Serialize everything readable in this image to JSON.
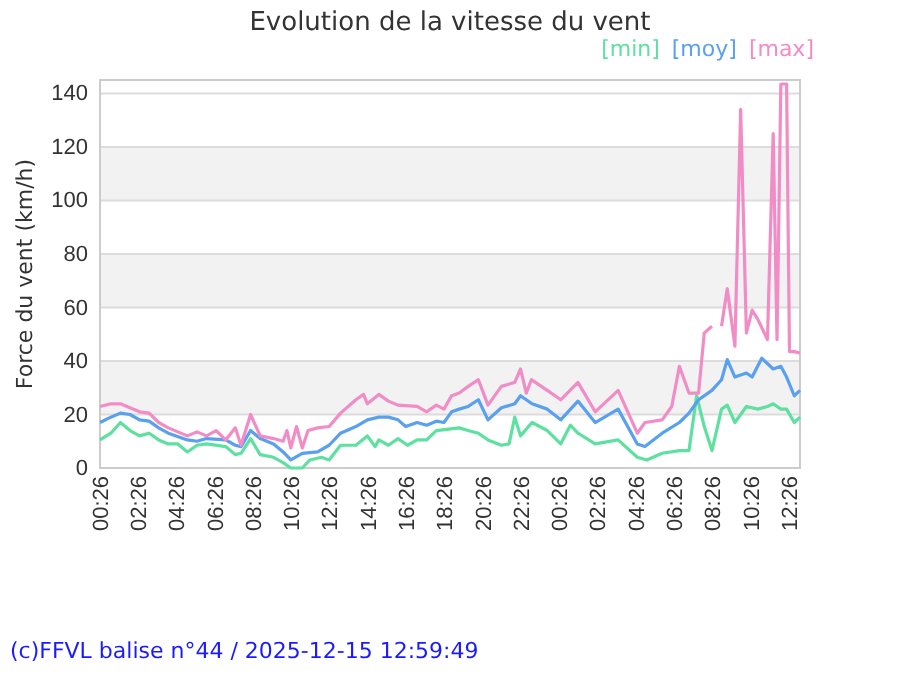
{
  "chart_data": {
    "type": "line",
    "title": "Evolution de la vitesse du vent",
    "ylabel": "Force du vent (km/h)",
    "annotations": [
      "(c)FFVL balise n°44 / 2025-12-15 12:59:49"
    ],
    "xlim": [
      "2025-12-14T00:26",
      "2025-12-15T13:00"
    ],
    "ylim": [
      0,
      145
    ],
    "xticks": [
      {
        "value": "2025-12-14T00:26",
        "label": "00:26"
      },
      {
        "value": "2025-12-14T02:26",
        "label": "02:26"
      },
      {
        "value": "2025-12-14T04:26",
        "label": "04:26"
      },
      {
        "value": "2025-12-14T06:26",
        "label": "06:26"
      },
      {
        "value": "2025-12-14T08:26",
        "label": "08:26"
      },
      {
        "value": "2025-12-14T10:26",
        "label": "10:26"
      },
      {
        "value": "2025-12-14T12:26",
        "label": "12:26"
      },
      {
        "value": "2025-12-14T14:26",
        "label": "14:26"
      },
      {
        "value": "2025-12-14T16:26",
        "label": "16:26"
      },
      {
        "value": "2025-12-14T18:26",
        "label": "18:26"
      },
      {
        "value": "2025-12-14T20:26",
        "label": "20:26"
      },
      {
        "value": "2025-12-14T22:26",
        "label": "22:26"
      },
      {
        "value": "2025-12-15T00:26",
        "label": "00:26"
      },
      {
        "value": "2025-12-15T02:26",
        "label": "02:26"
      },
      {
        "value": "2025-12-15T04:26",
        "label": "04:26"
      },
      {
        "value": "2025-12-15T06:26",
        "label": "06:26"
      },
      {
        "value": "2025-12-15T08:26",
        "label": "08:26"
      },
      {
        "value": "2025-12-15T10:26",
        "label": "10:26"
      },
      {
        "value": "2025-12-15T12:26",
        "label": "12:26"
      }
    ],
    "yticks": [
      0,
      20,
      40,
      60,
      80,
      100,
      120,
      140
    ],
    "grid": "y",
    "legend": "top right",
    "bands": [
      {
        "axis": "y",
        "from": 20,
        "to": 40,
        "color": "#f2f2f2"
      },
      {
        "axis": "y",
        "from": 60,
        "to": 80,
        "color": "#f2f2f2"
      },
      {
        "axis": "y",
        "from": 100,
        "to": 120,
        "color": "#f2f2f2"
      }
    ],
    "series": [
      {
        "name": "[min]",
        "color": "#5ee0a0",
        "x": [
          "2025-12-14T00:26",
          "2025-12-14T01:00",
          "2025-12-14T01:30",
          "2025-12-14T02:00",
          "2025-12-14T02:30",
          "2025-12-14T03:00",
          "2025-12-14T03:30",
          "2025-12-14T04:00",
          "2025-12-14T04:30",
          "2025-12-14T05:00",
          "2025-12-14T05:30",
          "2025-12-14T06:00",
          "2025-12-14T07:00",
          "2025-12-14T07:30",
          "2025-12-14T07:48",
          "2025-12-14T08:18",
          "2025-12-14T08:48",
          "2025-12-14T09:30",
          "2025-12-14T10:00",
          "2025-12-14T10:24",
          "2025-12-14T11:00",
          "2025-12-14T11:24",
          "2025-12-14T12:00",
          "2025-12-14T12:24",
          "2025-12-14T13:00",
          "2025-12-14T13:48",
          "2025-12-14T14:24",
          "2025-12-14T14:48",
          "2025-12-14T15:00",
          "2025-12-14T15:30",
          "2025-12-14T16:00",
          "2025-12-14T16:30",
          "2025-12-14T17:00",
          "2025-12-14T17:30",
          "2025-12-14T18:00",
          "2025-12-14T19:12",
          "2025-12-14T19:40",
          "2025-12-14T20:12",
          "2025-12-14T20:42",
          "2025-12-14T21:24",
          "2025-12-14T21:48",
          "2025-12-14T22:06",
          "2025-12-14T22:24",
          "2025-12-14T23:00",
          "2025-12-14T23:48",
          "2025-12-15T00:30",
          "2025-12-15T01:00",
          "2025-12-15T01:24",
          "2025-12-15T02:18",
          "2025-12-15T03:30",
          "2025-12-15T04:30",
          "2025-12-15T05:00",
          "2025-12-15T05:48",
          "2025-12-15T06:42",
          "2025-12-15T07:12",
          "2025-12-15T07:36",
          "2025-12-15T08:00",
          "2025-12-15T08:24",
          "2025-12-15T08:54",
          "2025-12-15T09:12",
          "2025-12-15T09:36",
          "2025-12-15T10:12",
          "2025-12-15T10:48",
          "2025-12-15T11:18",
          "2025-12-15T11:36",
          "2025-12-15T12:00",
          "2025-12-15T12:18",
          "2025-12-15T12:42",
          "2025-12-15T13:00"
        ],
        "values": [
          10.5,
          13,
          17,
          14,
          12,
          13,
          10.5,
          9,
          9,
          6,
          8.5,
          9,
          8,
          5,
          5.5,
          11,
          5,
          4,
          2,
          0,
          0,
          3,
          4,
          3,
          8.5,
          8.5,
          12,
          8,
          10.5,
          8.5,
          11,
          8.5,
          10.5,
          10.5,
          14,
          15,
          14,
          13,
          10.5,
          8.5,
          9,
          19,
          12,
          17,
          14,
          9,
          16,
          13,
          9,
          10.5,
          4,
          3,
          5.5,
          6.5,
          6.5,
          27,
          15.5,
          6.5,
          22,
          23.5,
          17,
          23,
          22,
          23,
          24,
          22,
          22,
          17,
          19
        ]
      },
      {
        "name": "[moy]",
        "color": "#5aa0f0",
        "x": [
          "2025-12-14T00:26",
          "2025-12-14T01:00",
          "2025-12-14T01:30",
          "2025-12-14T02:00",
          "2025-12-14T02:30",
          "2025-12-14T03:00",
          "2025-12-14T03:30",
          "2025-12-14T04:00",
          "2025-12-14T05:00",
          "2025-12-14T05:30",
          "2025-12-14T06:00",
          "2025-12-14T07:00",
          "2025-12-14T07:30",
          "2025-12-14T07:48",
          "2025-12-14T08:18",
          "2025-12-14T08:48",
          "2025-12-14T09:30",
          "2025-12-14T10:00",
          "2025-12-14T10:24",
          "2025-12-14T11:00",
          "2025-12-14T11:48",
          "2025-12-14T12:24",
          "2025-12-14T13:00",
          "2025-12-14T13:48",
          "2025-12-14T14:24",
          "2025-12-14T15:00",
          "2025-12-14T15:30",
          "2025-12-14T16:00",
          "2025-12-14T16:24",
          "2025-12-14T17:00",
          "2025-12-14T17:30",
          "2025-12-14T18:00",
          "2025-12-14T18:24",
          "2025-12-14T18:48",
          "2025-12-14T19:12",
          "2025-12-14T19:40",
          "2025-12-14T20:12",
          "2025-12-14T20:42",
          "2025-12-14T21:24",
          "2025-12-14T22:06",
          "2025-12-14T22:24",
          "2025-12-14T23:00",
          "2025-12-14T23:48",
          "2025-12-15T00:30",
          "2025-12-15T01:24",
          "2025-12-15T02:18",
          "2025-12-15T03:30",
          "2025-12-15T04:30",
          "2025-12-15T04:54",
          "2025-12-15T05:48",
          "2025-12-15T06:42",
          "2025-12-15T07:12",
          "2025-12-15T07:42",
          "2025-12-15T08:24",
          "2025-12-15T08:54",
          "2025-12-15T09:12",
          "2025-12-15T09:36",
          "2025-12-15T10:12",
          "2025-12-15T10:30",
          "2025-12-15T11:00",
          "2025-12-15T11:36",
          "2025-12-15T12:00",
          "2025-12-15T12:18",
          "2025-12-15T12:42",
          "2025-12-15T13:00"
        ],
        "values": [
          17,
          19,
          20.5,
          20,
          18,
          17.5,
          15,
          13,
          10.5,
          10,
          11,
          10.5,
          8.5,
          8,
          14,
          11,
          9,
          6,
          3,
          5.5,
          6,
          8.5,
          13,
          15.5,
          18,
          19,
          19,
          18,
          15.5,
          17,
          16,
          17.5,
          17,
          21,
          22,
          23,
          25.5,
          18,
          22.5,
          24,
          27,
          24,
          22,
          18,
          25,
          17,
          22,
          9,
          8,
          13,
          17,
          20.5,
          25.5,
          29,
          33,
          40.5,
          34,
          35.5,
          34,
          41,
          37,
          38,
          34,
          27,
          29
        ]
      },
      {
        "name": "[max]",
        "color": "#f28cc6",
        "x": [
          "2025-12-14T00:26",
          "2025-12-14T01:00",
          "2025-12-14T01:30",
          "2025-12-14T02:00",
          "2025-12-14T02:30",
          "2025-12-14T03:00",
          "2025-12-14T03:30",
          "2025-12-14T04:00",
          "2025-12-14T05:00",
          "2025-12-14T05:30",
          "2025-12-14T06:00",
          "2025-12-14T06:30",
          "2025-12-14T07:00",
          "2025-12-14T07:30",
          "2025-12-14T07:48",
          "2025-12-14T08:18",
          "2025-12-14T08:48",
          "2025-12-14T09:30",
          "2025-12-14T10:00",
          "2025-12-14T10:12",
          "2025-12-14T10:24",
          "2025-12-14T10:42",
          "2025-12-14T11:00",
          "2025-12-14T11:18",
          "2025-12-14T11:48",
          "2025-12-14T12:24",
          "2025-12-14T13:00",
          "2025-12-14T13:48",
          "2025-12-14T14:12",
          "2025-12-14T14:24",
          "2025-12-14T15:00",
          "2025-12-14T15:30",
          "2025-12-14T16:00",
          "2025-12-14T17:00",
          "2025-12-14T17:30",
          "2025-12-14T18:00",
          "2025-12-14T18:24",
          "2025-12-14T18:48",
          "2025-12-14T19:12",
          "2025-12-14T19:40",
          "2025-12-14T20:12",
          "2025-12-14T20:42",
          "2025-12-14T21:24",
          "2025-12-14T22:06",
          "2025-12-14T22:24",
          "2025-12-14T22:42",
          "2025-12-14T22:58",
          "2025-12-14T23:48",
          "2025-12-15T00:30",
          "2025-12-15T01:24",
          "2025-12-15T02:18",
          "2025-12-15T03:30",
          "2025-12-15T04:30",
          "2025-12-15T04:54",
          "2025-12-15T05:48",
          "2025-12-15T06:18",
          "2025-12-15T06:42",
          "2025-12-15T07:12",
          "2025-12-15T07:42",
          "2025-12-15T08:00",
          "2025-12-15T08:24",
          "2025-12-15T08:33",
          "2025-12-15T08:42",
          "2025-12-15T08:54",
          "2025-12-15T09:12",
          "2025-12-15T09:36",
          "2025-12-15T09:54",
          "2025-12-15T10:12",
          "2025-12-15T10:30",
          "2025-12-15T10:48",
          "2025-12-15T11:18",
          "2025-12-15T11:36",
          "2025-12-15T11:48",
          "2025-12-15T12:00",
          "2025-12-15T12:18",
          "2025-12-15T12:27",
          "2025-12-15T12:42",
          "2025-12-15T13:00"
        ],
        "values": [
          23,
          24,
          24,
          22.5,
          21,
          20.5,
          17,
          15,
          12,
          13.5,
          12,
          14,
          10.5,
          15,
          8.5,
          20,
          12,
          11,
          10,
          14,
          7.5,
          15.5,
          7.5,
          14,
          15,
          15.5,
          20.5,
          25.5,
          27.5,
          24,
          27.5,
          25,
          23.5,
          23,
          21,
          23.5,
          22,
          27,
          28,
          30.5,
          33,
          23.5,
          30.5,
          32,
          37,
          28,
          33,
          29,
          25.5,
          32,
          21,
          29,
          13,
          17,
          18,
          23,
          38,
          28,
          28,
          50.5,
          53,
          null,
          null,
          53,
          67,
          45.5,
          134,
          50.5,
          59,
          55.5,
          48,
          125,
          48,
          143.5,
          143.5,
          43.5,
          43.5,
          43
        ]
      }
    ]
  }
}
